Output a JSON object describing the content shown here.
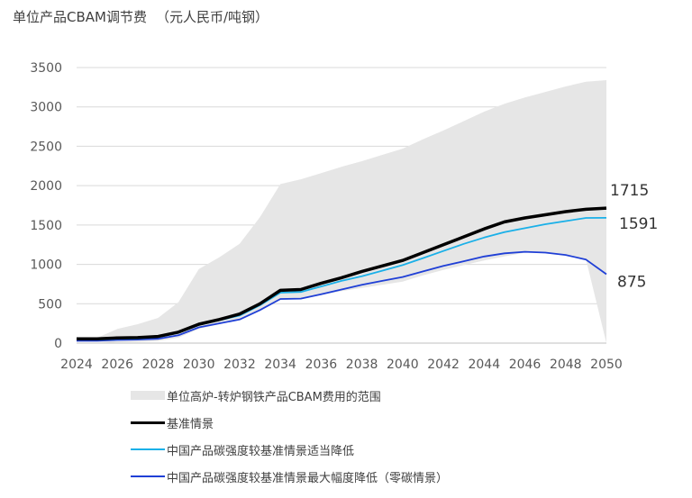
{
  "header": {
    "title": "单位产品CBAM调节费",
    "unit": "（元人民币/吨钢）"
  },
  "chart_data": {
    "type": "area",
    "xlim": [
      2024,
      2050
    ],
    "ylim": [
      0,
      3500
    ],
    "x_ticks": [
      2024,
      2026,
      2028,
      2030,
      2032,
      2034,
      2036,
      2038,
      2040,
      2042,
      2044,
      2046,
      2048,
      2050
    ],
    "y_ticks": [
      0,
      500,
      1000,
      1500,
      2000,
      2500,
      3000,
      3500
    ],
    "grid": true,
    "legend_position": "bottom",
    "x": [
      2024,
      2025,
      2026,
      2027,
      2028,
      2029,
      2030,
      2031,
      2032,
      2033,
      2034,
      2035,
      2036,
      2037,
      2038,
      2039,
      2040,
      2041,
      2042,
      2043,
      2044,
      2045,
      2046,
      2047,
      2048,
      2049,
      2050
    ],
    "band": {
      "name": "单位高炉-转炉钢铁产品CBAM费用的范围",
      "color": "#e6e6e6",
      "upper": [
        60,
        65,
        180,
        240,
        320,
        520,
        940,
        1090,
        1260,
        1600,
        2020,
        2080,
        2160,
        2240,
        2310,
        2390,
        2470,
        2590,
        2700,
        2820,
        2940,
        3040,
        3120,
        3190,
        3260,
        3320,
        3340
      ],
      "lower": [
        0,
        0,
        10,
        15,
        25,
        70,
        180,
        240,
        300,
        420,
        550,
        560,
        610,
        660,
        700,
        740,
        780,
        860,
        930,
        990,
        1050,
        1100,
        1150,
        1150,
        1120,
        1060,
        0
      ]
    },
    "series": [
      {
        "name": "基准情景",
        "color": "#000000",
        "width": 3.5,
        "values": [
          55,
          55,
          65,
          70,
          85,
          140,
          240,
          300,
          370,
          500,
          670,
          680,
          760,
          830,
          910,
          980,
          1050,
          1150,
          1250,
          1350,
          1450,
          1540,
          1590,
          1630,
          1670,
          1700,
          1715
        ],
        "end_label": "1715"
      },
      {
        "name": "中国产品碳强度较基准情景适当降低",
        "color": "#1ab0e8",
        "width": 1.8,
        "values": [
          45,
          45,
          55,
          60,
          75,
          130,
          230,
          290,
          350,
          480,
          640,
          650,
          720,
          790,
          850,
          920,
          990,
          1080,
          1170,
          1260,
          1340,
          1410,
          1460,
          1510,
          1550,
          1590,
          1591
        ],
        "end_label": "1591"
      },
      {
        "name": "中国产品碳强度较基准情景最大幅度降低（零碳情景）",
        "color": "#1f3fd6",
        "width": 1.8,
        "values": [
          30,
          30,
          40,
          45,
          55,
          100,
          200,
          250,
          300,
          420,
          560,
          565,
          620,
          680,
          740,
          790,
          840,
          910,
          980,
          1040,
          1100,
          1140,
          1160,
          1150,
          1120,
          1060,
          875
        ],
        "end_label": "875"
      }
    ]
  }
}
